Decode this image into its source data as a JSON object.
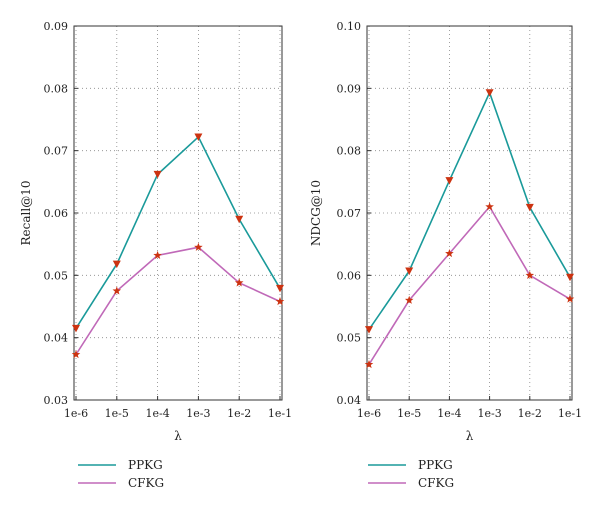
{
  "chart_data": [
    {
      "type": "line",
      "ylabel": "Recall@10",
      "xlabel": "λ",
      "categories": [
        "1e-6",
        "1e-5",
        "1e-4",
        "1e-3",
        "1e-2",
        "1e-1"
      ],
      "ylim": [
        0.03,
        0.09
      ],
      "yticks": [
        "0.03",
        "0.04",
        "0.05",
        "0.06",
        "0.07",
        "0.08",
        "0.09"
      ],
      "grid": true,
      "legend_position": "bottom-left",
      "series": [
        {
          "name": "PPKG",
          "color": "#1a9a9a",
          "marker": "triangle-down",
          "marker_color": "#cc3311",
          "values": [
            0.0415,
            0.0518,
            0.0662,
            0.0722,
            0.059,
            0.0479
          ]
        },
        {
          "name": "CFKG",
          "color": "#c069b8",
          "marker": "star",
          "marker_color": "#cc3311",
          "values": [
            0.0373,
            0.0475,
            0.0532,
            0.0545,
            0.0488,
            0.0458
          ]
        }
      ]
    },
    {
      "type": "line",
      "ylabel": "NDCG@10",
      "xlabel": "λ",
      "categories": [
        "1e-6",
        "1e-5",
        "1e-4",
        "1e-3",
        "1e-2",
        "1e-1"
      ],
      "ylim": [
        0.04,
        0.1
      ],
      "yticks": [
        "0.04",
        "0.05",
        "0.06",
        "0.07",
        "0.08",
        "0.09",
        "0.10"
      ],
      "grid": true,
      "legend_position": "bottom-left",
      "series": [
        {
          "name": "PPKG",
          "color": "#1a9a9a",
          "marker": "triangle-down",
          "marker_color": "#cc3311",
          "values": [
            0.0513,
            0.0607,
            0.0752,
            0.0893,
            0.0709,
            0.0597
          ]
        },
        {
          "name": "CFKG",
          "color": "#c069b8",
          "marker": "star",
          "marker_color": "#cc3311",
          "values": [
            0.0457,
            0.056,
            0.0635,
            0.071,
            0.06,
            0.0562
          ]
        }
      ]
    }
  ]
}
